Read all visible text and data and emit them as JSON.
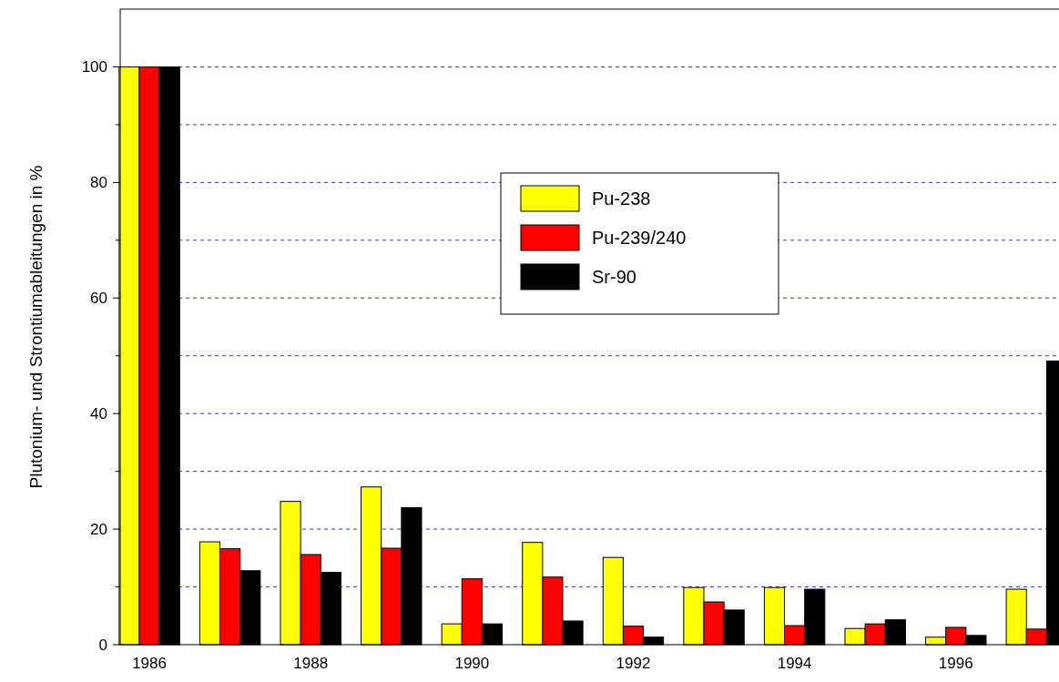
{
  "chart_data": {
    "type": "bar",
    "ylabel": "Plutonium- und Strontiumableitungen in %",
    "categories": [
      "1986",
      null,
      "1988",
      null,
      "1990",
      null,
      "1992",
      null,
      "1994",
      null,
      "1996",
      null
    ],
    "series": [
      {
        "name": "Pu-238",
        "color": "#ffff00",
        "values": [
          100,
          17.8,
          24.8,
          27.3,
          3.6,
          17.7,
          15.1,
          9.9,
          9.9,
          2.8,
          1.3,
          9.6
        ]
      },
      {
        "name": "Pu-239/240",
        "color": "#ff0000",
        "values": [
          100,
          16.6,
          15.6,
          16.7,
          11.4,
          11.7,
          3.2,
          7.4,
          3.3,
          3.6,
          3.0,
          2.7
        ]
      },
      {
        "name": "Sr-90",
        "color": "#000000",
        "values": [
          100,
          12.8,
          12.5,
          23.7,
          3.6,
          4.1,
          1.3,
          6.0,
          9.6,
          4.3,
          1.6,
          49.1
        ]
      }
    ],
    "ylim": [
      0,
      110
    ],
    "yticks": [
      0,
      {
        "value": 10,
        "label": null
      },
      20,
      {
        "value": 30,
        "label": null
      },
      40,
      {
        "value": 50,
        "label": null
      },
      60,
      {
        "value": 70,
        "label": null
      },
      80,
      {
        "value": 90,
        "label": null
      },
      100
    ],
    "grid": "y",
    "legend": "top"
  }
}
